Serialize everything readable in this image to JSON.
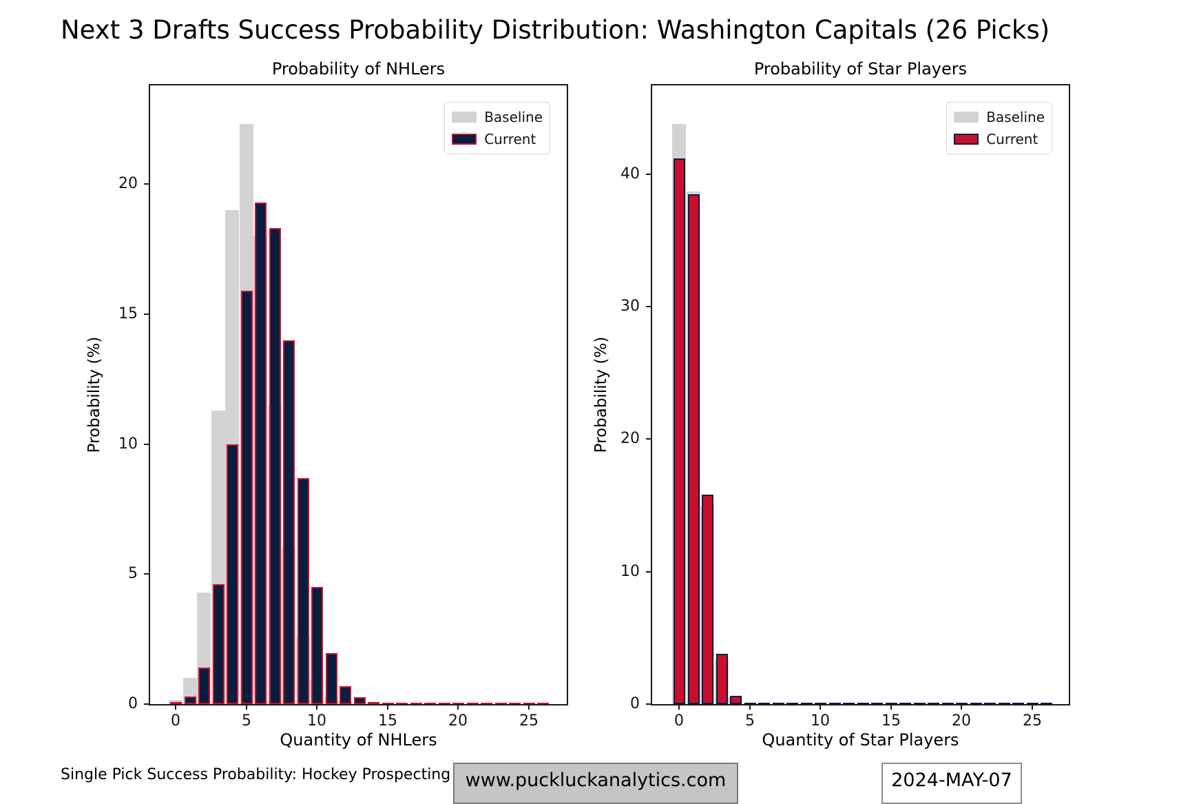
{
  "title": "Next 3 Drafts Success Probability Distribution: Washington Capitals (26 Picks)",
  "chart_data": [
    {
      "type": "bar",
      "title": "Probability of NHLers",
      "xlabel": "Quantity of NHLers",
      "ylabel": "Probability (%)",
      "x": [
        0,
        1,
        2,
        3,
        4,
        5,
        6,
        7,
        8,
        9,
        10,
        11,
        12,
        13,
        14
      ],
      "series": [
        {
          "name": "Baseline",
          "values": [
            0.15,
            1.0,
            4.3,
            11.3,
            19.0,
            22.3,
            18.0,
            11.5,
            6.0,
            2.6,
            0.95,
            0.3,
            0.08,
            0.02,
            0.01
          ]
        },
        {
          "name": "Current",
          "values": [
            0.07,
            0.3,
            1.4,
            4.6,
            10.0,
            15.9,
            19.3,
            18.3,
            14.0,
            8.7,
            4.5,
            1.95,
            0.7,
            0.26,
            0.08
          ]
        }
      ],
      "xticks": [
        0,
        5,
        10,
        15,
        20,
        25
      ],
      "yticks": [
        0,
        5,
        10,
        15,
        20
      ],
      "xlim": [
        -1.9,
        27.8
      ],
      "ylim": [
        0,
        23.9
      ],
      "grid": false,
      "legend_position": "upper right",
      "colors": {
        "baseline": "#d3d3d3",
        "current_fill": "#081e3e",
        "current_edge": "#c8102e"
      }
    },
    {
      "type": "bar",
      "title": "Probability of Star Players",
      "xlabel": "Quantity of Star Players",
      "ylabel": "Probability (%)",
      "x": [
        0,
        1,
        2,
        3,
        4,
        5
      ],
      "series": [
        {
          "name": "Baseline",
          "values": [
            43.8,
            38.7,
            15.0,
            3.4,
            0.5,
            0.06
          ]
        },
        {
          "name": "Current",
          "values": [
            41.2,
            38.5,
            15.8,
            3.8,
            0.65,
            0.1
          ]
        }
      ],
      "xticks": [
        0,
        5,
        10,
        15,
        20,
        25
      ],
      "yticks": [
        0,
        10,
        20,
        30,
        40
      ],
      "xlim": [
        -1.9,
        27.8
      ],
      "ylim": [
        0,
        46.9
      ],
      "grid": false,
      "legend_position": "upper right",
      "colors": {
        "baseline": "#d3d3d3",
        "current_fill": "#c8102e",
        "current_edge": "#081e3e"
      }
    }
  ],
  "footer": {
    "left_text": "Single Pick Success Probability: Hockey Prospecting",
    "website": "www.puckluckanalytics.com",
    "date": "2024-MAY-07"
  }
}
